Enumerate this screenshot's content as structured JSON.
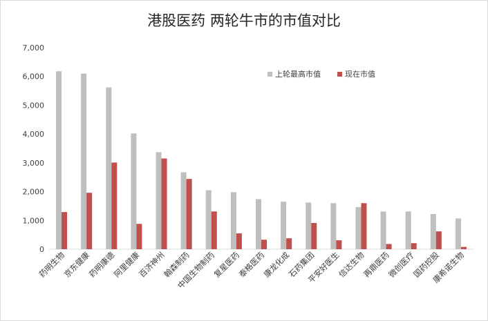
{
  "chart_data": {
    "type": "bar",
    "title": "港股医药 两轮牛市的市值对比",
    "xlabel": "",
    "ylabel": "",
    "ylim": [
      0,
      7000
    ],
    "yticks": [
      "0",
      "1,000",
      "2,000",
      "3,000",
      "4,000",
      "5,000",
      "6,000",
      "7,000"
    ],
    "grid": false,
    "legend_position": "top-right",
    "categories": [
      "药明生物",
      "京东健康",
      "药明康德",
      "阿里健康",
      "百济神州",
      "翰森制药",
      "中国生物制药",
      "复星医药",
      "泰格医药",
      "康龙化成",
      "石药集团",
      "平安好医生",
      "信达生物",
      "再鼎医药",
      "微创医疗",
      "国药控股",
      "康希诺生物"
    ],
    "series": [
      {
        "name": "上轮最高市值",
        "color": "#bfbfbf",
        "values": [
          6180,
          6100,
          5620,
          4020,
          3370,
          2670,
          2050,
          1980,
          1740,
          1650,
          1620,
          1600,
          1460,
          1310,
          1310,
          1220,
          1070
        ]
      },
      {
        "name": "现在市值",
        "color": "#c0504d",
        "values": [
          1290,
          1960,
          3010,
          880,
          3150,
          2440,
          1310,
          550,
          330,
          380,
          910,
          310,
          1600,
          180,
          210,
          620,
          80
        ]
      }
    ]
  }
}
